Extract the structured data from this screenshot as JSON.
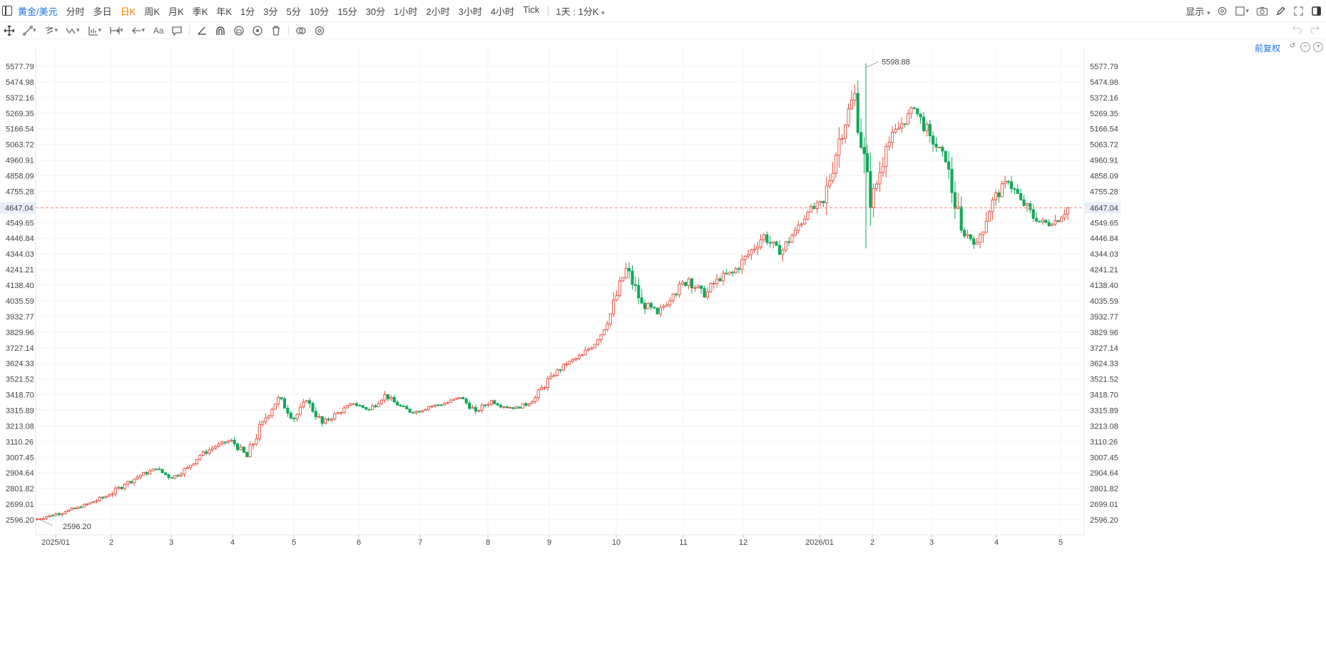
{
  "header": {
    "symbol": "黄金/美元",
    "periods": [
      "分时",
      "多日",
      "日K",
      "周K",
      "月K",
      "季K",
      "年K",
      "1分",
      "3分",
      "5分",
      "10分",
      "15分",
      "30分",
      "1小时",
      "2小时",
      "3小时",
      "4小时",
      "Tick"
    ],
    "active_period": "日K",
    "period_select": "1天 : 1分K",
    "display_label": "显示"
  },
  "adjust_label": "前复权",
  "current_price_label": "4647.04",
  "icons": [
    "panel-toggle-icon",
    "move-icon",
    "line-icon",
    "channel-icon",
    "wave-icon",
    "measure-icon",
    "range-icon",
    "arrow-icon",
    "text-icon",
    "comment-icon",
    "angle-icon",
    "magnet-icon",
    "lock-icon",
    "eye-icon",
    "trash-icon",
    "compare-icon",
    "settings-icon",
    "camera-icon",
    "pencil-icon",
    "fullscreen-icon",
    "undo-icon",
    "redo-icon",
    "zoom-out-icon",
    "zoom-in-icon"
  ],
  "colors": {
    "up": "#e74c3c",
    "down": "#0fa958",
    "accent": "#1a73e8",
    "active_period": "#f57c00",
    "price_line": "#f28b82"
  },
  "chart_data": {
    "type": "candlestick",
    "y_ticks": [
      "5577.79",
      "5474.98",
      "5372.16",
      "5269.35",
      "5166.54",
      "5063.72",
      "4960.91",
      "4858.09",
      "4755.28",
      "4647.04",
      "4549.65",
      "4446.84",
      "4344.03",
      "4241.21",
      "4138.40",
      "4035.59",
      "3932.77",
      "3829.96",
      "3727.14",
      "3624.33",
      "3521.52",
      "3418.70",
      "3315.89",
      "3213.08",
      "3110.26",
      "3007.45",
      "2904.64",
      "2801.82",
      "2699.01",
      "2596.20"
    ],
    "x_labels": [
      "2025/01",
      "2",
      "3",
      "4",
      "5",
      "6",
      "7",
      "8",
      "9",
      "10",
      "11",
      "12",
      "2026/01",
      "2",
      "3",
      "4",
      "5"
    ],
    "current_price": 4647.04,
    "high_label": "5598.88",
    "low_label": "2596.20",
    "ylim": [
      2540,
      5660
    ],
    "series": [
      [
        "2025-01",
        2596,
        2625
      ],
      [
        "2025-01",
        2625,
        2650
      ],
      [
        "2025-01",
        2650,
        2680
      ],
      [
        "2025-01",
        2680,
        2715
      ],
      [
        "2025-02",
        2715,
        2760
      ],
      [
        "2025-02",
        2760,
        2830
      ],
      [
        "2025-02",
        2830,
        2890
      ],
      [
        "2025-02",
        2890,
        2930
      ],
      [
        "2025-03",
        2930,
        2870
      ],
      [
        "2025-03",
        2870,
        2940
      ],
      [
        "2025-03",
        2940,
        3020
      ],
      [
        "2025-03",
        3020,
        3080
      ],
      [
        "2025-04",
        3080,
        3120
      ],
      [
        "2025-04",
        3120,
        3010
      ],
      [
        "2025-04",
        3010,
        3240
      ],
      [
        "2025-04",
        3240,
        3400
      ],
      [
        "2025-05",
        3400,
        3260
      ],
      [
        "2025-05",
        3260,
        3380
      ],
      [
        "2025-05",
        3380,
        3230
      ],
      [
        "2025-05",
        3230,
        3300
      ],
      [
        "2025-06",
        3300,
        3360
      ],
      [
        "2025-06",
        3360,
        3320
      ],
      [
        "2025-06",
        3320,
        3420
      ],
      [
        "2025-06",
        3420,
        3350
      ],
      [
        "2025-07",
        3350,
        3300
      ],
      [
        "2025-07",
        3300,
        3340
      ],
      [
        "2025-07",
        3340,
        3360
      ],
      [
        "2025-07",
        3360,
        3400
      ],
      [
        "2025-08",
        3400,
        3310
      ],
      [
        "2025-08",
        3310,
        3380
      ],
      [
        "2025-08",
        3380,
        3340
      ],
      [
        "2025-08",
        3340,
        3330
      ],
      [
        "2025-09",
        3330,
        3400
      ],
      [
        "2025-09",
        3400,
        3540
      ],
      [
        "2025-09",
        3540,
        3620
      ],
      [
        "2025-09",
        3620,
        3680
      ],
      [
        "2025-10",
        3680,
        3780
      ],
      [
        "2025-10",
        3780,
        3950
      ],
      [
        "2025-10",
        3950,
        4250
      ],
      [
        "2025-10",
        4250,
        4020
      ],
      [
        "2025-11",
        4020,
        3950
      ],
      [
        "2025-11",
        3950,
        4080
      ],
      [
        "2025-11",
        4080,
        4180
      ],
      [
        "2025-11",
        4180,
        4060
      ],
      [
        "2025-12",
        4060,
        4180
      ],
      [
        "2025-12",
        4180,
        4220
      ],
      [
        "2025-12",
        4220,
        4340
      ],
      [
        "2025-12",
        4340,
        4470
      ],
      [
        "2026-01",
        4470,
        4340
      ],
      [
        "2026-01",
        4340,
        4500
      ],
      [
        "2026-01",
        4500,
        4620
      ],
      [
        "2026-01",
        4620,
        4680
      ],
      [
        "2026-02",
        4680,
        5100
      ],
      [
        "2026-02",
        5100,
        5400
      ],
      [
        "2026-02",
        5400,
        4650
      ],
      [
        "2026-02",
        4650,
        5050
      ],
      [
        "2026-03",
        5050,
        5200
      ],
      [
        "2026-03",
        5200,
        5300
      ],
      [
        "2026-03",
        5300,
        5120
      ],
      [
        "2026-03",
        5120,
        4950
      ],
      [
        "2026-04",
        4950,
        4500
      ],
      [
        "2026-04",
        4500,
        4420
      ],
      [
        "2026-04",
        4420,
        4700
      ],
      [
        "2026-04",
        4700,
        4820
      ],
      [
        "2026-05",
        4820,
        4700
      ],
      [
        "2026-05",
        4700,
        4560
      ],
      [
        "2026-05",
        4560,
        4540
      ],
      [
        "2026-05",
        4540,
        4647
      ]
    ]
  }
}
